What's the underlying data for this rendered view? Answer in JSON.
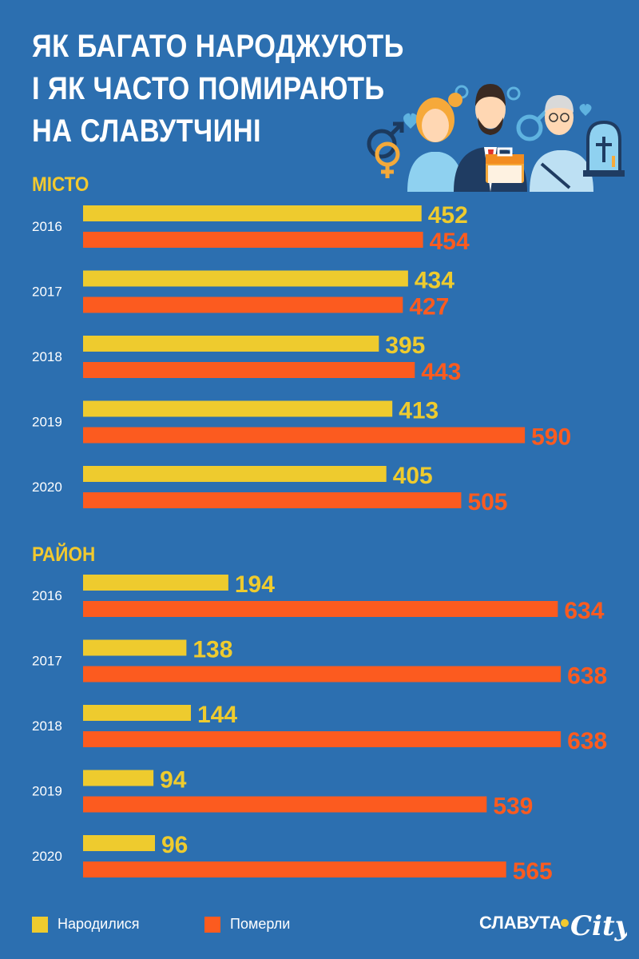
{
  "title_lines": [
    "ЯК БАГАТО НАРОДЖУЮТЬ",
    "І ЯК ЧАСТО ПОМИРАЮТЬ",
    "НА СЛАВУТЧИНІ"
  ],
  "colors": {
    "background": "#2c6fb0",
    "born": "#eecb2e",
    "died": "#fc5b1f",
    "title": "#ffffff",
    "section": "#f2c92f"
  },
  "legend": {
    "born": "Народилися",
    "died": "Померли"
  },
  "logo": {
    "text": "СЛАВУТА",
    "script": "City"
  },
  "chart_data": {
    "type": "bar",
    "orientation": "horizontal",
    "legend_placement": "bottom-left",
    "sections": [
      {
        "label": "МІСТО",
        "categories": [
          "2016",
          "2017",
          "2018",
          "2019",
          "2020"
        ],
        "series": [
          {
            "name": "Народилися",
            "values": [
              452,
              434,
              395,
              413,
              405
            ]
          },
          {
            "name": "Померли",
            "values": [
              454,
              427,
              443,
              590,
              505
            ]
          }
        ]
      },
      {
        "label": "РАЙОН",
        "categories": [
          "2016",
          "2017",
          "2018",
          "2019",
          "2020"
        ],
        "series": [
          {
            "name": "Народилися",
            "values": [
              194,
              138,
              144,
              94,
              96
            ]
          },
          {
            "name": "Померли",
            "values": [
              634,
              638,
              638,
              539,
              565
            ]
          }
        ]
      }
    ]
  }
}
